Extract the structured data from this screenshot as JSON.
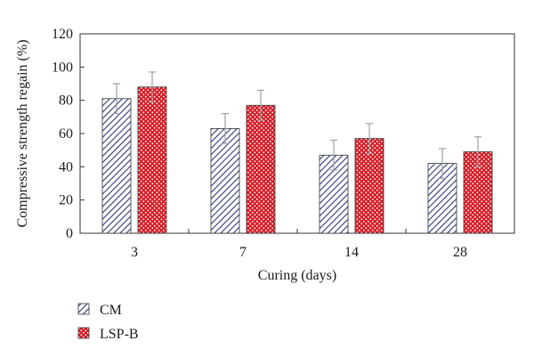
{
  "chart_data": {
    "type": "bar",
    "xlabel": "Curing (days)",
    "ylabel": "Compressive strength regain (%)",
    "categories": [
      "3",
      "7",
      "14",
      "28"
    ],
    "ylim": [
      0,
      120
    ],
    "yticks": [
      0,
      20,
      40,
      60,
      80,
      100,
      120
    ],
    "grid": false,
    "legend_position": "bottom-left",
    "series": [
      {
        "name": "CM",
        "values": [
          81,
          63,
          47,
          42
        ],
        "errors": [
          9,
          9,
          9,
          9
        ],
        "color": "#2b3a7a",
        "fill": "#ffffff",
        "pattern": "diagonal-hatch"
      },
      {
        "name": "LSP-B",
        "values": [
          88,
          77,
          57,
          49
        ],
        "errors": [
          9,
          9,
          9,
          9
        ],
        "color": "#d81e28",
        "fill": "#d81e28",
        "pattern": "white-dots"
      }
    ],
    "error_bar_color": "#a0a0a0"
  }
}
